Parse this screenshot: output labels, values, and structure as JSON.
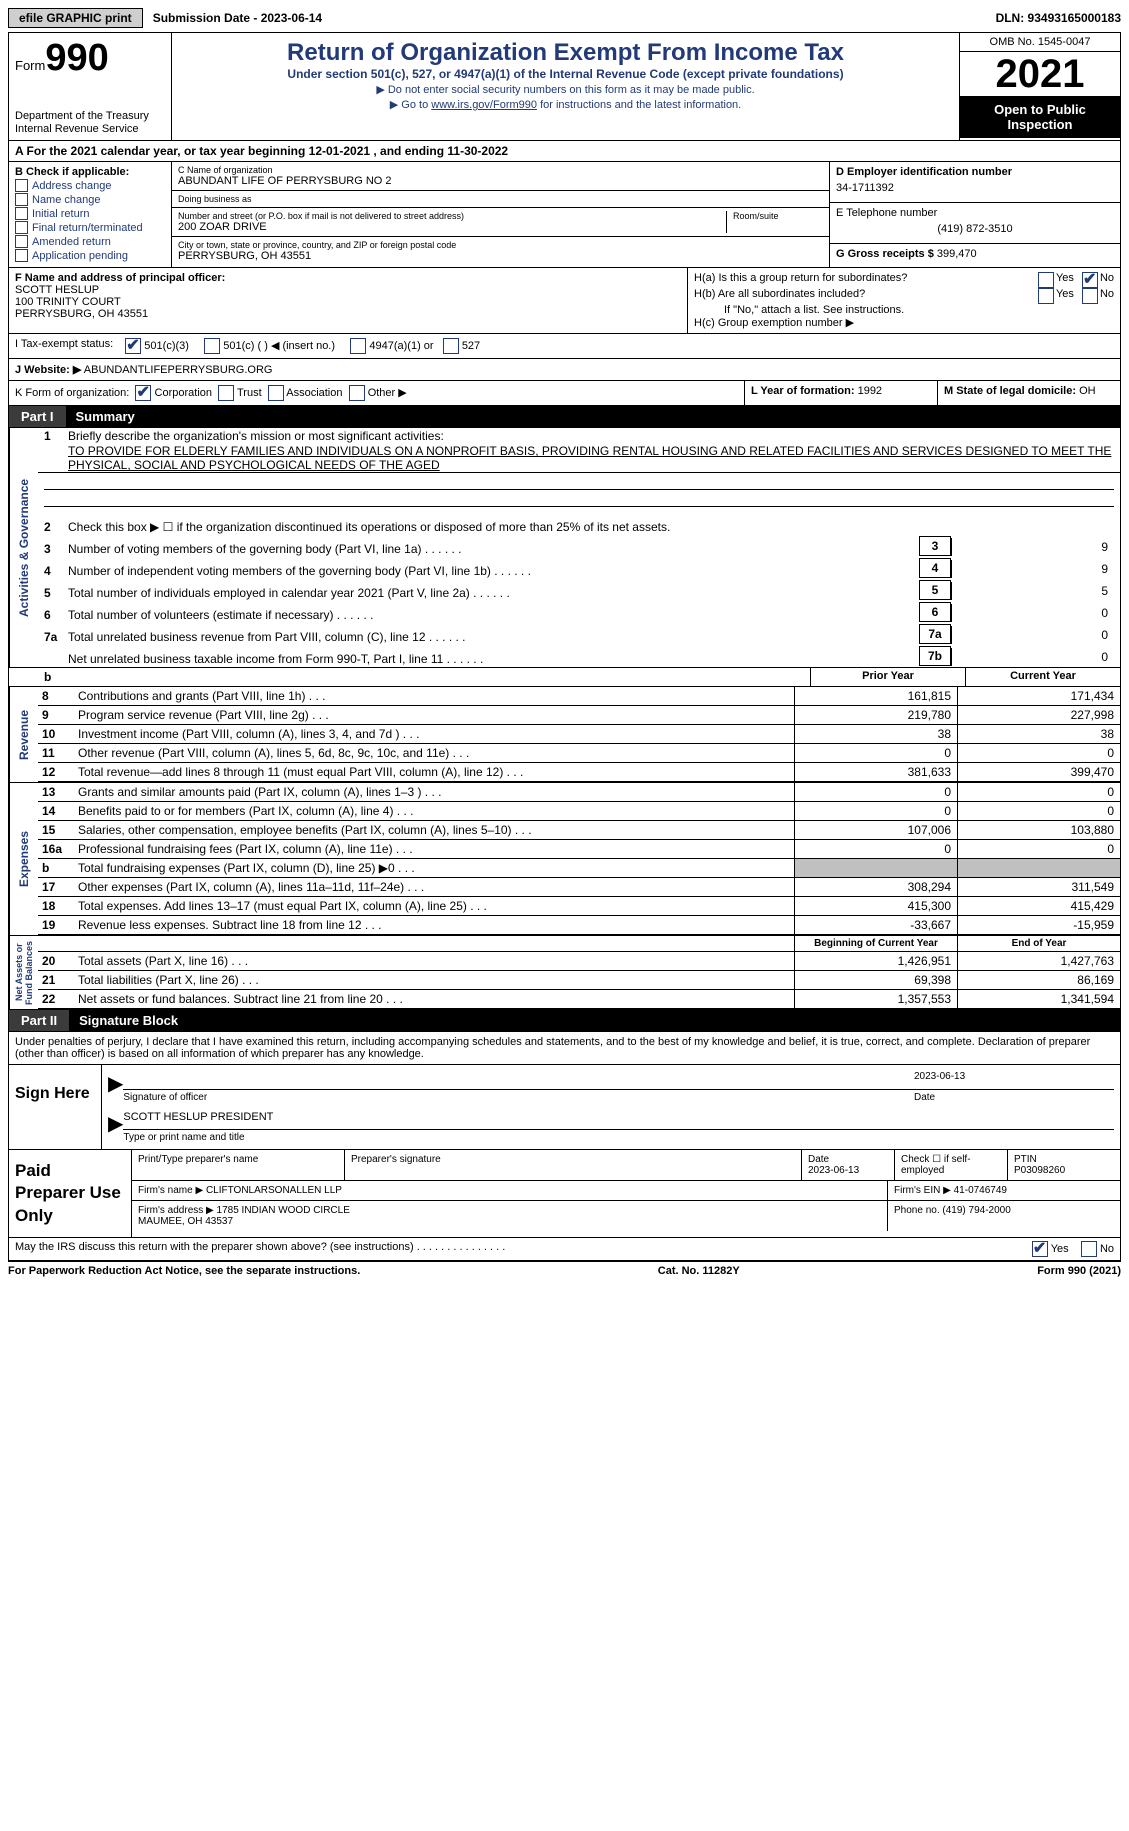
{
  "topbar": {
    "efile": "efile GRAPHIC print",
    "submission": "Submission Date - 2023-06-14",
    "dln": "DLN: 93493165000183"
  },
  "header": {
    "form_label": "Form",
    "form_num": "990",
    "title": "Return of Organization Exempt From Income Tax",
    "subtitle": "Under section 501(c), 527, or 4947(a)(1) of the Internal Revenue Code (except private foundations)",
    "line1": "▶ Do not enter social security numbers on this form as it may be made public.",
    "line2_pre": "▶ Go to ",
    "line2_link": "www.irs.gov/Form990",
    "line2_post": " for instructions and the latest information.",
    "dept": "Department of the Treasury\nInternal Revenue Service",
    "omb": "OMB No. 1545-0047",
    "year": "2021",
    "open": "Open to Public Inspection"
  },
  "rowA": "A For the 2021 calendar year, or tax year beginning 12-01-2021    , and ending 11-30-2022",
  "sectionB": {
    "label": "B Check if applicable:",
    "opts": [
      "Address change",
      "Name change",
      "Initial return",
      "Final return/terminated",
      "Amended return",
      "Application pending"
    ]
  },
  "sectionC": {
    "name_lbl": "C Name of organization",
    "name": "ABUNDANT LIFE OF PERRYSBURG NO 2",
    "dba_lbl": "Doing business as",
    "dba": "",
    "addr_lbl": "Number and street (or P.O. box if mail is not delivered to street address)",
    "room_lbl": "Room/suite",
    "addr": "200 ZOAR DRIVE",
    "city_lbl": "City or town, state or province, country, and ZIP or foreign postal code",
    "city": "PERRYSBURG, OH  43551"
  },
  "sectionD": {
    "ein_lbl": "D Employer identification number",
    "ein": "34-1711392",
    "phone_lbl": "E Telephone number",
    "phone": "(419) 872-3510",
    "gross_lbl": "G Gross receipts $",
    "gross": "399,470"
  },
  "sectionF": {
    "lbl": "F Name and address of principal officer:",
    "name": "SCOTT HESLUP",
    "addr1": "100 TRINITY COURT",
    "addr2": "PERRYSBURG, OH  43551"
  },
  "sectionH": {
    "ha": "H(a) Is this a group return for subordinates?",
    "hb": "H(b) Are all subordinates included?",
    "hb_note": "If \"No,\" attach a list. See instructions.",
    "hc": "H(c) Group exemption number ▶",
    "yes": "Yes",
    "no": "No"
  },
  "sectionI": {
    "lbl": "I    Tax-exempt status:",
    "o1": "501(c)(3)",
    "o2": "501(c) (  ) ◀ (insert no.)",
    "o3": "4947(a)(1) or",
    "o4": "527"
  },
  "sectionJ": {
    "lbl": "J   Website: ▶",
    "val": "ABUNDANTLIFEPERRYSBURG.ORG"
  },
  "sectionK": {
    "lbl": "K Form of organization:",
    "o1": "Corporation",
    "o2": "Trust",
    "o3": "Association",
    "o4": "Other ▶"
  },
  "sectionL": {
    "lbl": "L Year of formation:",
    "val": "1992"
  },
  "sectionM": {
    "lbl": "M State of legal domicile:",
    "val": "OH"
  },
  "parts": {
    "p1": "Part I",
    "p1t": "Summary",
    "p2": "Part II",
    "p2t": "Signature Block"
  },
  "vlabels": {
    "ag": "Activities & Governance",
    "rev": "Revenue",
    "exp": "Expenses",
    "na": "Net Assets or\nFund Balances"
  },
  "summary": {
    "l1": "Briefly describe the organization's mission or most significant activities:",
    "mission": "TO PROVIDE FOR ELDERLY FAMILIES AND INDIVIDUALS ON A NONPROFIT BASIS, PROVIDING RENTAL HOUSING AND RELATED FACILITIES AND SERVICES DESIGNED TO MEET THE PHYSICAL, SOCIAL AND PSYCHOLOGICAL NEEDS OF THE AGED",
    "l2": "Check this box ▶ ☐ if the organization discontinued its operations or disposed of more than 25% of its net assets.",
    "rows_ag": [
      {
        "n": "3",
        "t": "Number of voting members of the governing body (Part VI, line 1a)",
        "box": "3",
        "v": "9"
      },
      {
        "n": "4",
        "t": "Number of independent voting members of the governing body (Part VI, line 1b)",
        "box": "4",
        "v": "9"
      },
      {
        "n": "5",
        "t": "Total number of individuals employed in calendar year 2021 (Part V, line 2a)",
        "box": "5",
        "v": "5"
      },
      {
        "n": "6",
        "t": "Total number of volunteers (estimate if necessary)",
        "box": "6",
        "v": "0"
      },
      {
        "n": "7a",
        "t": "Total unrelated business revenue from Part VIII, column (C), line 12",
        "box": "7a",
        "v": "0"
      },
      {
        "n": "",
        "t": "Net unrelated business taxable income from Form 990-T, Part I, line 11",
        "box": "7b",
        "v": "0"
      }
    ],
    "col_prior": "Prior Year",
    "col_current": "Current Year",
    "rows_rev": [
      {
        "n": "8",
        "t": "Contributions and grants (Part VIII, line 1h)",
        "p": "161,815",
        "c": "171,434"
      },
      {
        "n": "9",
        "t": "Program service revenue (Part VIII, line 2g)",
        "p": "219,780",
        "c": "227,998"
      },
      {
        "n": "10",
        "t": "Investment income (Part VIII, column (A), lines 3, 4, and 7d )",
        "p": "38",
        "c": "38"
      },
      {
        "n": "11",
        "t": "Other revenue (Part VIII, column (A), lines 5, 6d, 8c, 9c, 10c, and 11e)",
        "p": "0",
        "c": "0"
      },
      {
        "n": "12",
        "t": "Total revenue—add lines 8 through 11 (must equal Part VIII, column (A), line 12)",
        "p": "381,633",
        "c": "399,470"
      }
    ],
    "rows_exp": [
      {
        "n": "13",
        "t": "Grants and similar amounts paid (Part IX, column (A), lines 1–3 )",
        "p": "0",
        "c": "0"
      },
      {
        "n": "14",
        "t": "Benefits paid to or for members (Part IX, column (A), line 4)",
        "p": "0",
        "c": "0"
      },
      {
        "n": "15",
        "t": "Salaries, other compensation, employee benefits (Part IX, column (A), lines 5–10)",
        "p": "107,006",
        "c": "103,880"
      },
      {
        "n": "16a",
        "t": "Professional fundraising fees (Part IX, column (A), line 11e)",
        "p": "0",
        "c": "0"
      },
      {
        "n": "b",
        "t": "Total fundraising expenses (Part IX, column (D), line 25) ▶0",
        "p": "",
        "c": "",
        "grey": true
      },
      {
        "n": "17",
        "t": "Other expenses (Part IX, column (A), lines 11a–11d, 11f–24e)",
        "p": "308,294",
        "c": "311,549"
      },
      {
        "n": "18",
        "t": "Total expenses. Add lines 13–17 (must equal Part IX, column (A), line 25)",
        "p": "415,300",
        "c": "415,429"
      },
      {
        "n": "19",
        "t": "Revenue less expenses. Subtract line 18 from line 12",
        "p": "-33,667",
        "c": "-15,959"
      }
    ],
    "col_begin": "Beginning of Current Year",
    "col_end": "End of Year",
    "rows_na": [
      {
        "n": "20",
        "t": "Total assets (Part X, line 16)",
        "p": "1,426,951",
        "c": "1,427,763"
      },
      {
        "n": "21",
        "t": "Total liabilities (Part X, line 26)",
        "p": "69,398",
        "c": "86,169"
      },
      {
        "n": "22",
        "t": "Net assets or fund balances. Subtract line 21 from line 20",
        "p": "1,357,553",
        "c": "1,341,594"
      }
    ]
  },
  "sig": {
    "perjury": "Under penalties of perjury, I declare that I have examined this return, including accompanying schedules and statements, and to the best of my knowledge and belief, it is true, correct, and complete. Declaration of preparer (other than officer) is based on all information of which preparer has any knowledge.",
    "sign_here": "Sign Here",
    "sig_officer": "Signature of officer",
    "date": "Date",
    "sig_date": "2023-06-13",
    "name_title": "SCOTT HESLUP  PRESIDENT",
    "type_name": "Type or print name and title"
  },
  "paid": {
    "lbl": "Paid Preparer Use Only",
    "h1": "Print/Type preparer's name",
    "h2": "Preparer's signature",
    "h3": "Date",
    "h3v": "2023-06-13",
    "h4": "Check ☐ if self-employed",
    "h5": "PTIN",
    "ptin": "P03098260",
    "firm_name_lbl": "Firm's name    ▶",
    "firm_name": "CLIFTONLARSONALLEN LLP",
    "firm_ein_lbl": "Firm's EIN ▶",
    "firm_ein": "41-0746749",
    "firm_addr_lbl": "Firm's address ▶",
    "firm_addr": "1785 INDIAN WOOD CIRCLE\nMAUMEE, OH  43537",
    "firm_phone_lbl": "Phone no.",
    "firm_phone": "(419) 794-2000"
  },
  "footer": {
    "discuss": "May the IRS discuss this return with the preparer shown above? (see instructions)",
    "yes": "Yes",
    "no": "No",
    "paperwork": "For Paperwork Reduction Act Notice, see the separate instructions.",
    "cat": "Cat. No. 11282Y",
    "form": "Form 990 (2021)"
  }
}
